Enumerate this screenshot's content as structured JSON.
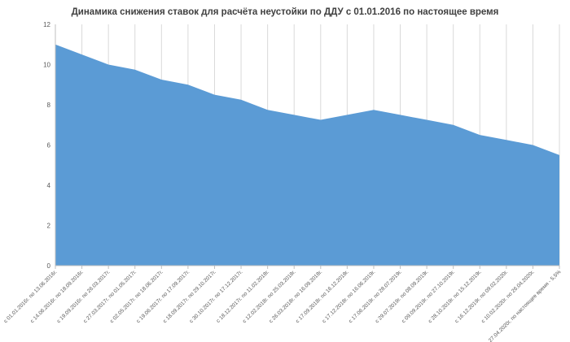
{
  "chart_data": {
    "type": "area",
    "title": "Динамика снижения ставок для расчёта неустойки по ДДУ с 01.01.2016 по настоящее время",
    "xlabel": "",
    "ylabel": "",
    "ylim": [
      0,
      12
    ],
    "yticks": [
      0,
      2,
      4,
      6,
      8,
      10,
      12
    ],
    "grid": "vertical",
    "legend": "none",
    "colors": {
      "fill": "#5b9bd5",
      "grid": "#d9d9d9",
      "axis": "#bfbfbf"
    },
    "categories": [
      "с 01.01.2016г. по 13.06.2016г.",
      "с 14.06.2016г. по 18.09.2016г.",
      "с 19.09.2016г. по 26.03.2017г.",
      "с 27.03.2017г. по 01.05.2017г.",
      "с 02.05.2017г. по 18.06.2017г.",
      "с 19.06.2017г. по 17.09.2017г.",
      "с 18.09.2017г. по 29.10.2017г.",
      "с 30.10.2017г. по 17.12.2017г.",
      "с 18.12.2017г. по 11.02.2018г.",
      "с 12.02.2018г. по 25.03.2018г.",
      "с 26.03.2018г. по 16.09.2018г.",
      "с 17.09.2018г. по 16.12.2018г.",
      "с 17.12.2018г. по 16.06.2019г.",
      "с 17.06.2019г. по 28.07.2019г.",
      "с 29.07.2019г. по 08.09.2019г.",
      "с 09.09.2019г. по 27.10.2019г.",
      "с 28.10.2019г. по 15.12.2019г.",
      "с 16.12.2019г. по 09.02.2020г.",
      "с 10.02.2020г. по 26.04.2020г.",
      "с 27.04.2020г. по настоящее время - 5,5%"
    ],
    "values": [
      11,
      10.5,
      10,
      9.75,
      9.25,
      9,
      8.5,
      8.25,
      7.75,
      7.5,
      7.25,
      7.5,
      7.75,
      7.5,
      7.25,
      7,
      6.5,
      6.25,
      6,
      5.5
    ]
  }
}
